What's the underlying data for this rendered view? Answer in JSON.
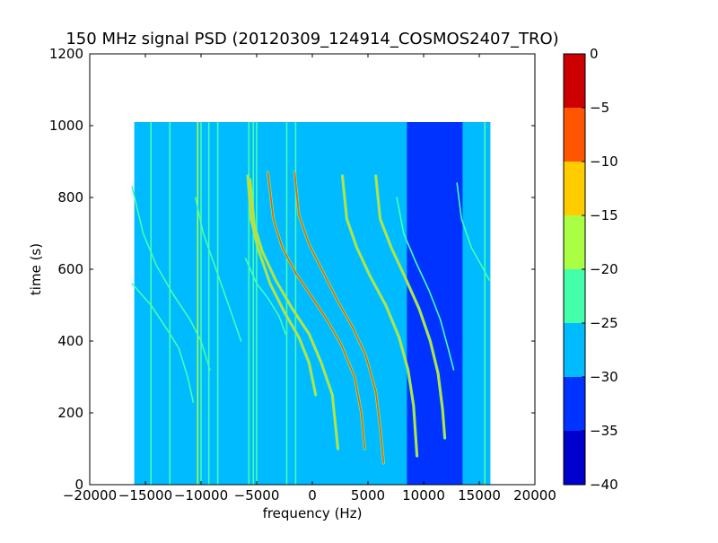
{
  "chart_data": {
    "type": "heatmap",
    "title": "150 MHz signal PSD (20120309_124914_COSMOS2407_TRO)",
    "xlabel": "frequency (Hz)",
    "ylabel": "time (s)",
    "xlim": [
      -20000,
      20000
    ],
    "ylim": [
      0,
      1200
    ],
    "xticks": [
      -20000,
      -15000,
      -10000,
      -5000,
      0,
      5000,
      10000,
      15000,
      20000
    ],
    "xtick_labels": [
      "−20000",
      "−15000",
      "−10000",
      "−5000",
      "0",
      "5000",
      "10000",
      "15000",
      "20000"
    ],
    "yticks": [
      0,
      200,
      400,
      600,
      800,
      1000,
      1200
    ],
    "ytick_labels": [
      "0",
      "200",
      "400",
      "600",
      "800",
      "1000",
      "1200"
    ],
    "data_extent": {
      "freq": [
        -16000,
        16000
      ],
      "time": [
        0,
        1010
      ]
    },
    "background_level": -27,
    "colorbar": {
      "levels": [
        -40,
        -35,
        -30,
        -25,
        -20,
        -15,
        -10,
        -5,
        0
      ],
      "tick_labels": [
        "−40",
        "−35",
        "−30",
        "−25",
        "−20",
        "−15",
        "−10",
        "−5",
        "0"
      ],
      "colors": [
        "#0000cc",
        "#0033ff",
        "#00bbff",
        "#44ffaa",
        "#aaff44",
        "#ffcc00",
        "#ff5500",
        "#cc0000"
      ]
    },
    "low_band": {
      "freq": [
        8500,
        13500
      ],
      "time": [
        0,
        1010
      ],
      "level": -33
    },
    "vertical_lines": [
      {
        "freq": -14500,
        "level": -22
      },
      {
        "freq": -12800,
        "level": -22
      },
      {
        "freq": -10300,
        "level": -17
      },
      {
        "freq": -10000,
        "level": -22
      },
      {
        "freq": -9300,
        "level": -22
      },
      {
        "freq": -8500,
        "level": -22
      },
      {
        "freq": -5700,
        "level": -22
      },
      {
        "freq": -5300,
        "level": -22
      },
      {
        "freq": -5000,
        "level": -22
      },
      {
        "freq": -2300,
        "level": -22
      },
      {
        "freq": -1500,
        "level": -22
      },
      {
        "freq": 15500,
        "level": -22
      }
    ],
    "traces": [
      {
        "level": -22,
        "points": [
          [
            -16200,
            830
          ],
          [
            -15200,
            700
          ],
          [
            -14000,
            610
          ],
          [
            -12500,
            530
          ],
          [
            -11000,
            460
          ],
          [
            -10000,
            400
          ],
          [
            -9200,
            320
          ]
        ]
      },
      {
        "level": -22,
        "points": [
          [
            -16200,
            560
          ],
          [
            -14500,
            500
          ],
          [
            -13000,
            430
          ],
          [
            -12000,
            380
          ],
          [
            -11200,
            300
          ],
          [
            -10700,
            230
          ]
        ]
      },
      {
        "level": -22,
        "points": [
          [
            -10500,
            800
          ],
          [
            -9800,
            700
          ],
          [
            -9000,
            630
          ],
          [
            -8200,
            560
          ],
          [
            -7300,
            480
          ],
          [
            -6400,
            400
          ]
        ]
      },
      {
        "level": -22,
        "points": [
          [
            -6000,
            630
          ],
          [
            -5000,
            560
          ],
          [
            -4000,
            520
          ],
          [
            -3000,
            470
          ],
          [
            -2400,
            420
          ]
        ]
      },
      {
        "level": -15,
        "points": [
          [
            -5800,
            860
          ],
          [
            -5500,
            740
          ],
          [
            -4900,
            660
          ],
          [
            -3800,
            560
          ],
          [
            -2500,
            480
          ],
          [
            -1200,
            410
          ],
          [
            -300,
            340
          ],
          [
            300,
            250
          ]
        ]
      },
      {
        "level": -15,
        "points": [
          [
            -5600,
            850
          ],
          [
            -5200,
            720
          ],
          [
            -4500,
            650
          ],
          [
            -3300,
            570
          ],
          [
            -1800,
            490
          ],
          [
            -300,
            420
          ],
          [
            800,
            340
          ],
          [
            1800,
            250
          ],
          [
            2300,
            100
          ]
        ]
      },
      {
        "level": -10,
        "points": [
          [
            -4000,
            870
          ],
          [
            -3500,
            740
          ],
          [
            -2700,
            660
          ],
          [
            -1500,
            590
          ],
          [
            -200,
            530
          ],
          [
            1300,
            460
          ],
          [
            2600,
            390
          ],
          [
            3800,
            300
          ],
          [
            4400,
            200
          ],
          [
            4700,
            100
          ]
        ]
      },
      {
        "level": -10,
        "points": [
          [
            -1600,
            870
          ],
          [
            -1200,
            750
          ],
          [
            -300,
            670
          ],
          [
            1000,
            590
          ],
          [
            2300,
            510
          ],
          [
            3600,
            440
          ],
          [
            4800,
            360
          ],
          [
            5700,
            260
          ],
          [
            6100,
            160
          ],
          [
            6400,
            60
          ]
        ]
      },
      {
        "level": -15,
        "points": [
          [
            2700,
            860
          ],
          [
            3100,
            740
          ],
          [
            4000,
            660
          ],
          [
            5200,
            580
          ],
          [
            6600,
            500
          ],
          [
            7800,
            410
          ],
          [
            8600,
            320
          ],
          [
            9100,
            220
          ],
          [
            9400,
            80
          ]
        ]
      },
      {
        "level": -15,
        "points": [
          [
            5700,
            860
          ],
          [
            6100,
            740
          ],
          [
            7100,
            660
          ],
          [
            8300,
            580
          ],
          [
            9600,
            490
          ],
          [
            10600,
            400
          ],
          [
            11300,
            310
          ],
          [
            11700,
            210
          ],
          [
            11900,
            130
          ]
        ]
      },
      {
        "level": -22,
        "points": [
          [
            7600,
            800
          ],
          [
            8200,
            700
          ],
          [
            9300,
            620
          ],
          [
            10500,
            540
          ],
          [
            11500,
            460
          ],
          [
            12200,
            380
          ],
          [
            12700,
            320
          ]
        ]
      },
      {
        "level": -22,
        "points": [
          [
            13000,
            840
          ],
          [
            13400,
            740
          ],
          [
            14300,
            660
          ],
          [
            15200,
            610
          ],
          [
            15900,
            570
          ]
        ]
      }
    ]
  }
}
